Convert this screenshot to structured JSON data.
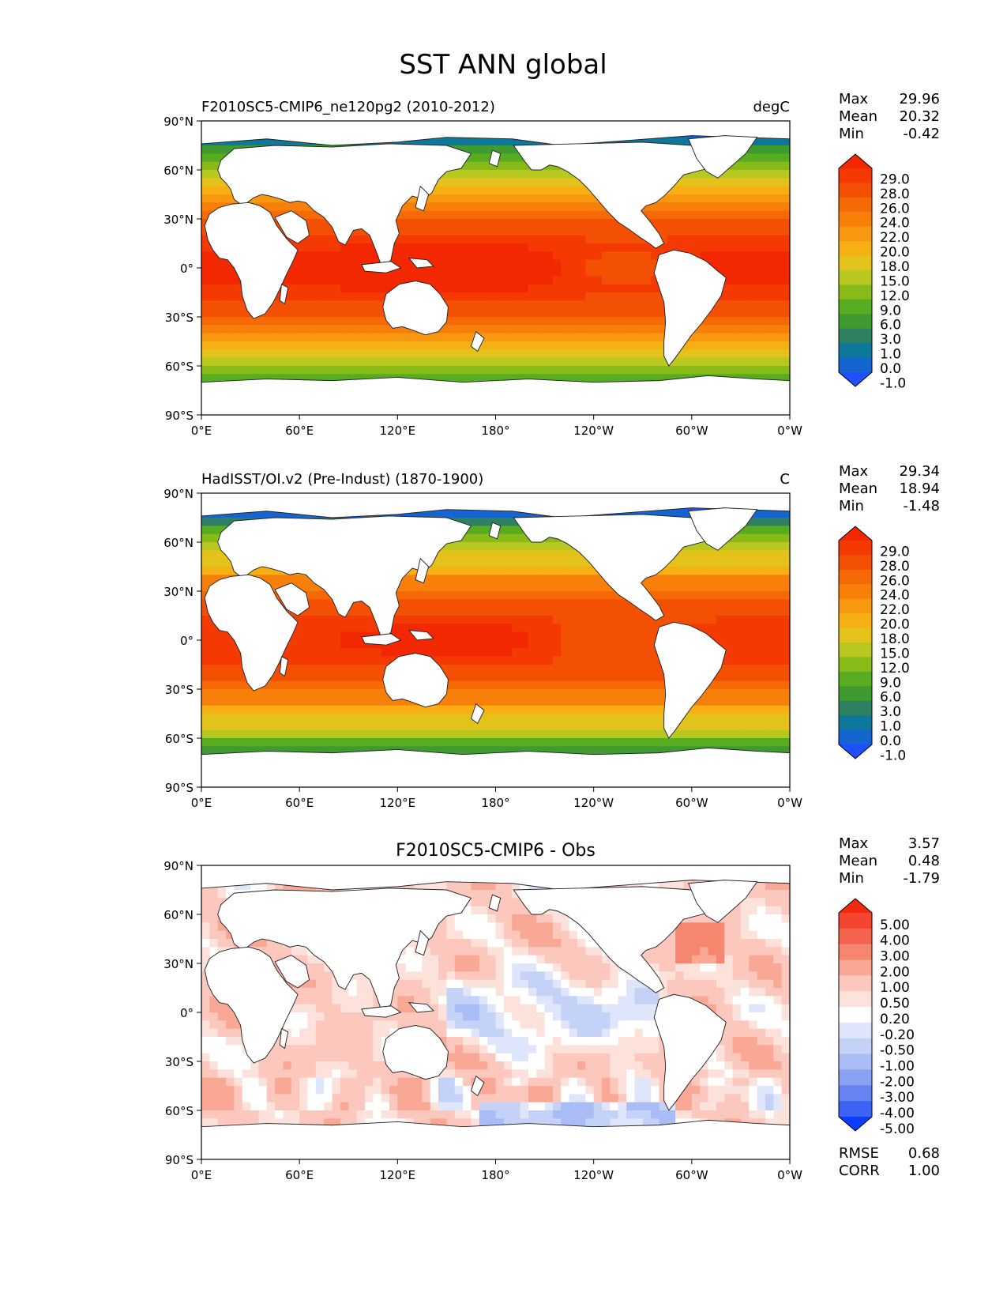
{
  "title": "SST ANN global",
  "lat_ticks": [
    "90°N",
    "60°N",
    "30°N",
    "0°",
    "30°S",
    "60°S",
    "90°S"
  ],
  "lon_ticks": [
    "0°E",
    "60°E",
    "120°E",
    "180°",
    "120°W",
    "60°W",
    "0°W"
  ],
  "panels": [
    {
      "id": "test",
      "left_title": "F2010SC5-CMIP6_ne120pg2 (2010-2012)",
      "center_title": "",
      "right_title": "degC",
      "stats": [
        {
          "label": "Max",
          "value": "29.96"
        },
        {
          "label": "Mean",
          "value": "20.32"
        },
        {
          "label": "Min",
          "value": "-0.42"
        }
      ],
      "colorbar": {
        "ticks": [
          "29.0",
          "28.0",
          "26.0",
          "24.0",
          "22.0",
          "20.0",
          "18.0",
          "15.0",
          "12.0",
          "9.0",
          "6.0",
          "3.0",
          "1.0",
          "0.0",
          "-1.0"
        ],
        "colors": [
          "#1f4fff",
          "#1565d0",
          "#0c789c",
          "#2e8060",
          "#3f9a30",
          "#58ac20",
          "#88bb18",
          "#b8c820",
          "#e4c21c",
          "#f6b014",
          "#f89810",
          "#f8800a",
          "#f66a06",
          "#f45004",
          "#f43a02",
          "#f42800"
        ]
      },
      "field": "sst_model",
      "bottom_stats": []
    },
    {
      "id": "reference",
      "left_title": "HadISST/OI.v2 (Pre-Indust) (1870-1900)",
      "center_title": "",
      "right_title": "C",
      "stats": [
        {
          "label": "Max",
          "value": "29.34"
        },
        {
          "label": "Mean",
          "value": "18.94"
        },
        {
          "label": "Min",
          "value": "-1.48"
        }
      ],
      "colorbar": {
        "ticks": [
          "29.0",
          "28.0",
          "26.0",
          "24.0",
          "22.0",
          "20.0",
          "18.0",
          "15.0",
          "12.0",
          "9.0",
          "6.0",
          "3.0",
          "1.0",
          "0.0",
          "-1.0"
        ],
        "colors": [
          "#1f4fff",
          "#1565d0",
          "#0c789c",
          "#2e8060",
          "#3f9a30",
          "#58ac20",
          "#88bb18",
          "#b8c820",
          "#e4c21c",
          "#f6b014",
          "#f89810",
          "#f8800a",
          "#f66a06",
          "#f45004",
          "#f43a02",
          "#f42800"
        ]
      },
      "field": "sst_obs",
      "bottom_stats": []
    },
    {
      "id": "difference",
      "left_title": "",
      "center_title": "F2010SC5-CMIP6 - Obs",
      "right_title": "",
      "stats": [
        {
          "label": "Max",
          "value": "3.57"
        },
        {
          "label": "Mean",
          "value": "0.48"
        },
        {
          "label": "Min",
          "value": "-1.79"
        }
      ],
      "colorbar": {
        "ticks": [
          "5.00",
          "4.00",
          "3.00",
          "2.00",
          "1.00",
          "0.50",
          "0.20",
          "-0.20",
          "-0.50",
          "-1.00",
          "-2.00",
          "-3.00",
          "-4.00",
          "-5.00"
        ],
        "colors": [
          "#0b3dff",
          "#3d63f5",
          "#6584f2",
          "#8aa2f2",
          "#a9bcf5",
          "#c5d2f8",
          "#dfe6fb",
          "#ffffff",
          "#fde2dc",
          "#fcc8bd",
          "#f9a896",
          "#f6866f",
          "#f4634e",
          "#f3452f",
          "#f42a10"
        ]
      },
      "field": "sst_diff",
      "bottom_stats": [
        {
          "label": "RMSE",
          "value": "0.68"
        },
        {
          "label": "CORR",
          "value": "1.00"
        }
      ]
    }
  ]
}
